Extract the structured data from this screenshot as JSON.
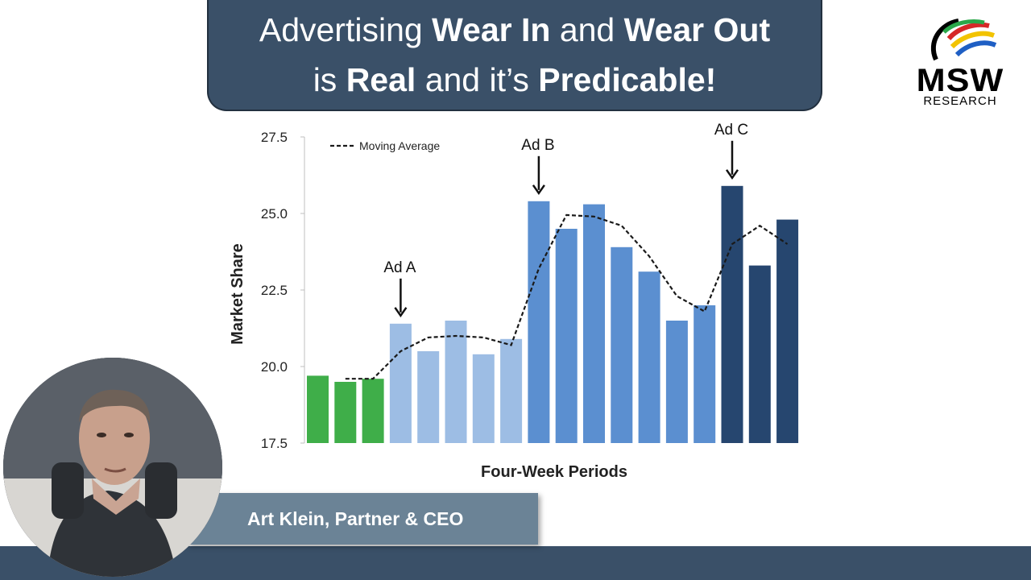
{
  "title": {
    "l1_a": "Advertising ",
    "l1_b": "Wear In",
    "l1_c": " and ",
    "l1_d": "Wear Out",
    "l2_a": "is ",
    "l2_b": "Real",
    "l2_c": " and it’s ",
    "l2_d": "Predicable!"
  },
  "logo": {
    "name": "MSW",
    "sub": "RESEARCH"
  },
  "presenter": {
    "name": "Art Klein, Partner & CEO"
  },
  "colors": {
    "title_bg": "#3a5068",
    "bar_green": "#3fae49",
    "bar_light_blue": "#9dbde4",
    "bar_mid_blue": "#5b8fd0",
    "bar_dark_blue": "#26466f",
    "name_tag": "#6b8396"
  },
  "chart_data": {
    "type": "bar",
    "xlabel": "Four-Week Periods",
    "ylabel": "Market Share",
    "ylim": [
      17.5,
      27.5
    ],
    "yticks": [
      "17.5",
      "20.0",
      "22.5",
      "25.0",
      "27.5"
    ],
    "grid": false,
    "legend": {
      "label": "Moving Average",
      "position": "top-left"
    },
    "series": [
      {
        "type": "bar",
        "values": [
          19.7,
          19.5,
          19.6,
          21.4,
          20.5,
          21.5,
          20.4,
          20.9,
          25.4,
          24.5,
          25.3,
          23.9,
          23.1,
          21.5,
          22.0,
          25.9,
          23.3,
          24.8
        ],
        "colors": [
          "green",
          "green",
          "green",
          "light",
          "light",
          "light",
          "light",
          "light",
          "mid",
          "mid",
          "mid",
          "mid",
          "mid",
          "mid",
          "mid",
          "dark",
          "dark",
          "dark"
        ]
      },
      {
        "name": "Moving Average",
        "type": "line",
        "start_index": 1,
        "values": [
          19.6,
          19.6,
          20.5,
          20.95,
          21.0,
          20.95,
          20.7,
          23.2,
          24.95,
          24.9,
          24.6,
          23.6,
          22.3,
          21.8,
          24.0,
          24.6,
          24.0
        ]
      }
    ],
    "annotations": [
      {
        "text": "Ad A",
        "index": 3
      },
      {
        "text": "Ad B",
        "index": 8
      },
      {
        "text": "Ad C",
        "index": 15
      }
    ]
  }
}
